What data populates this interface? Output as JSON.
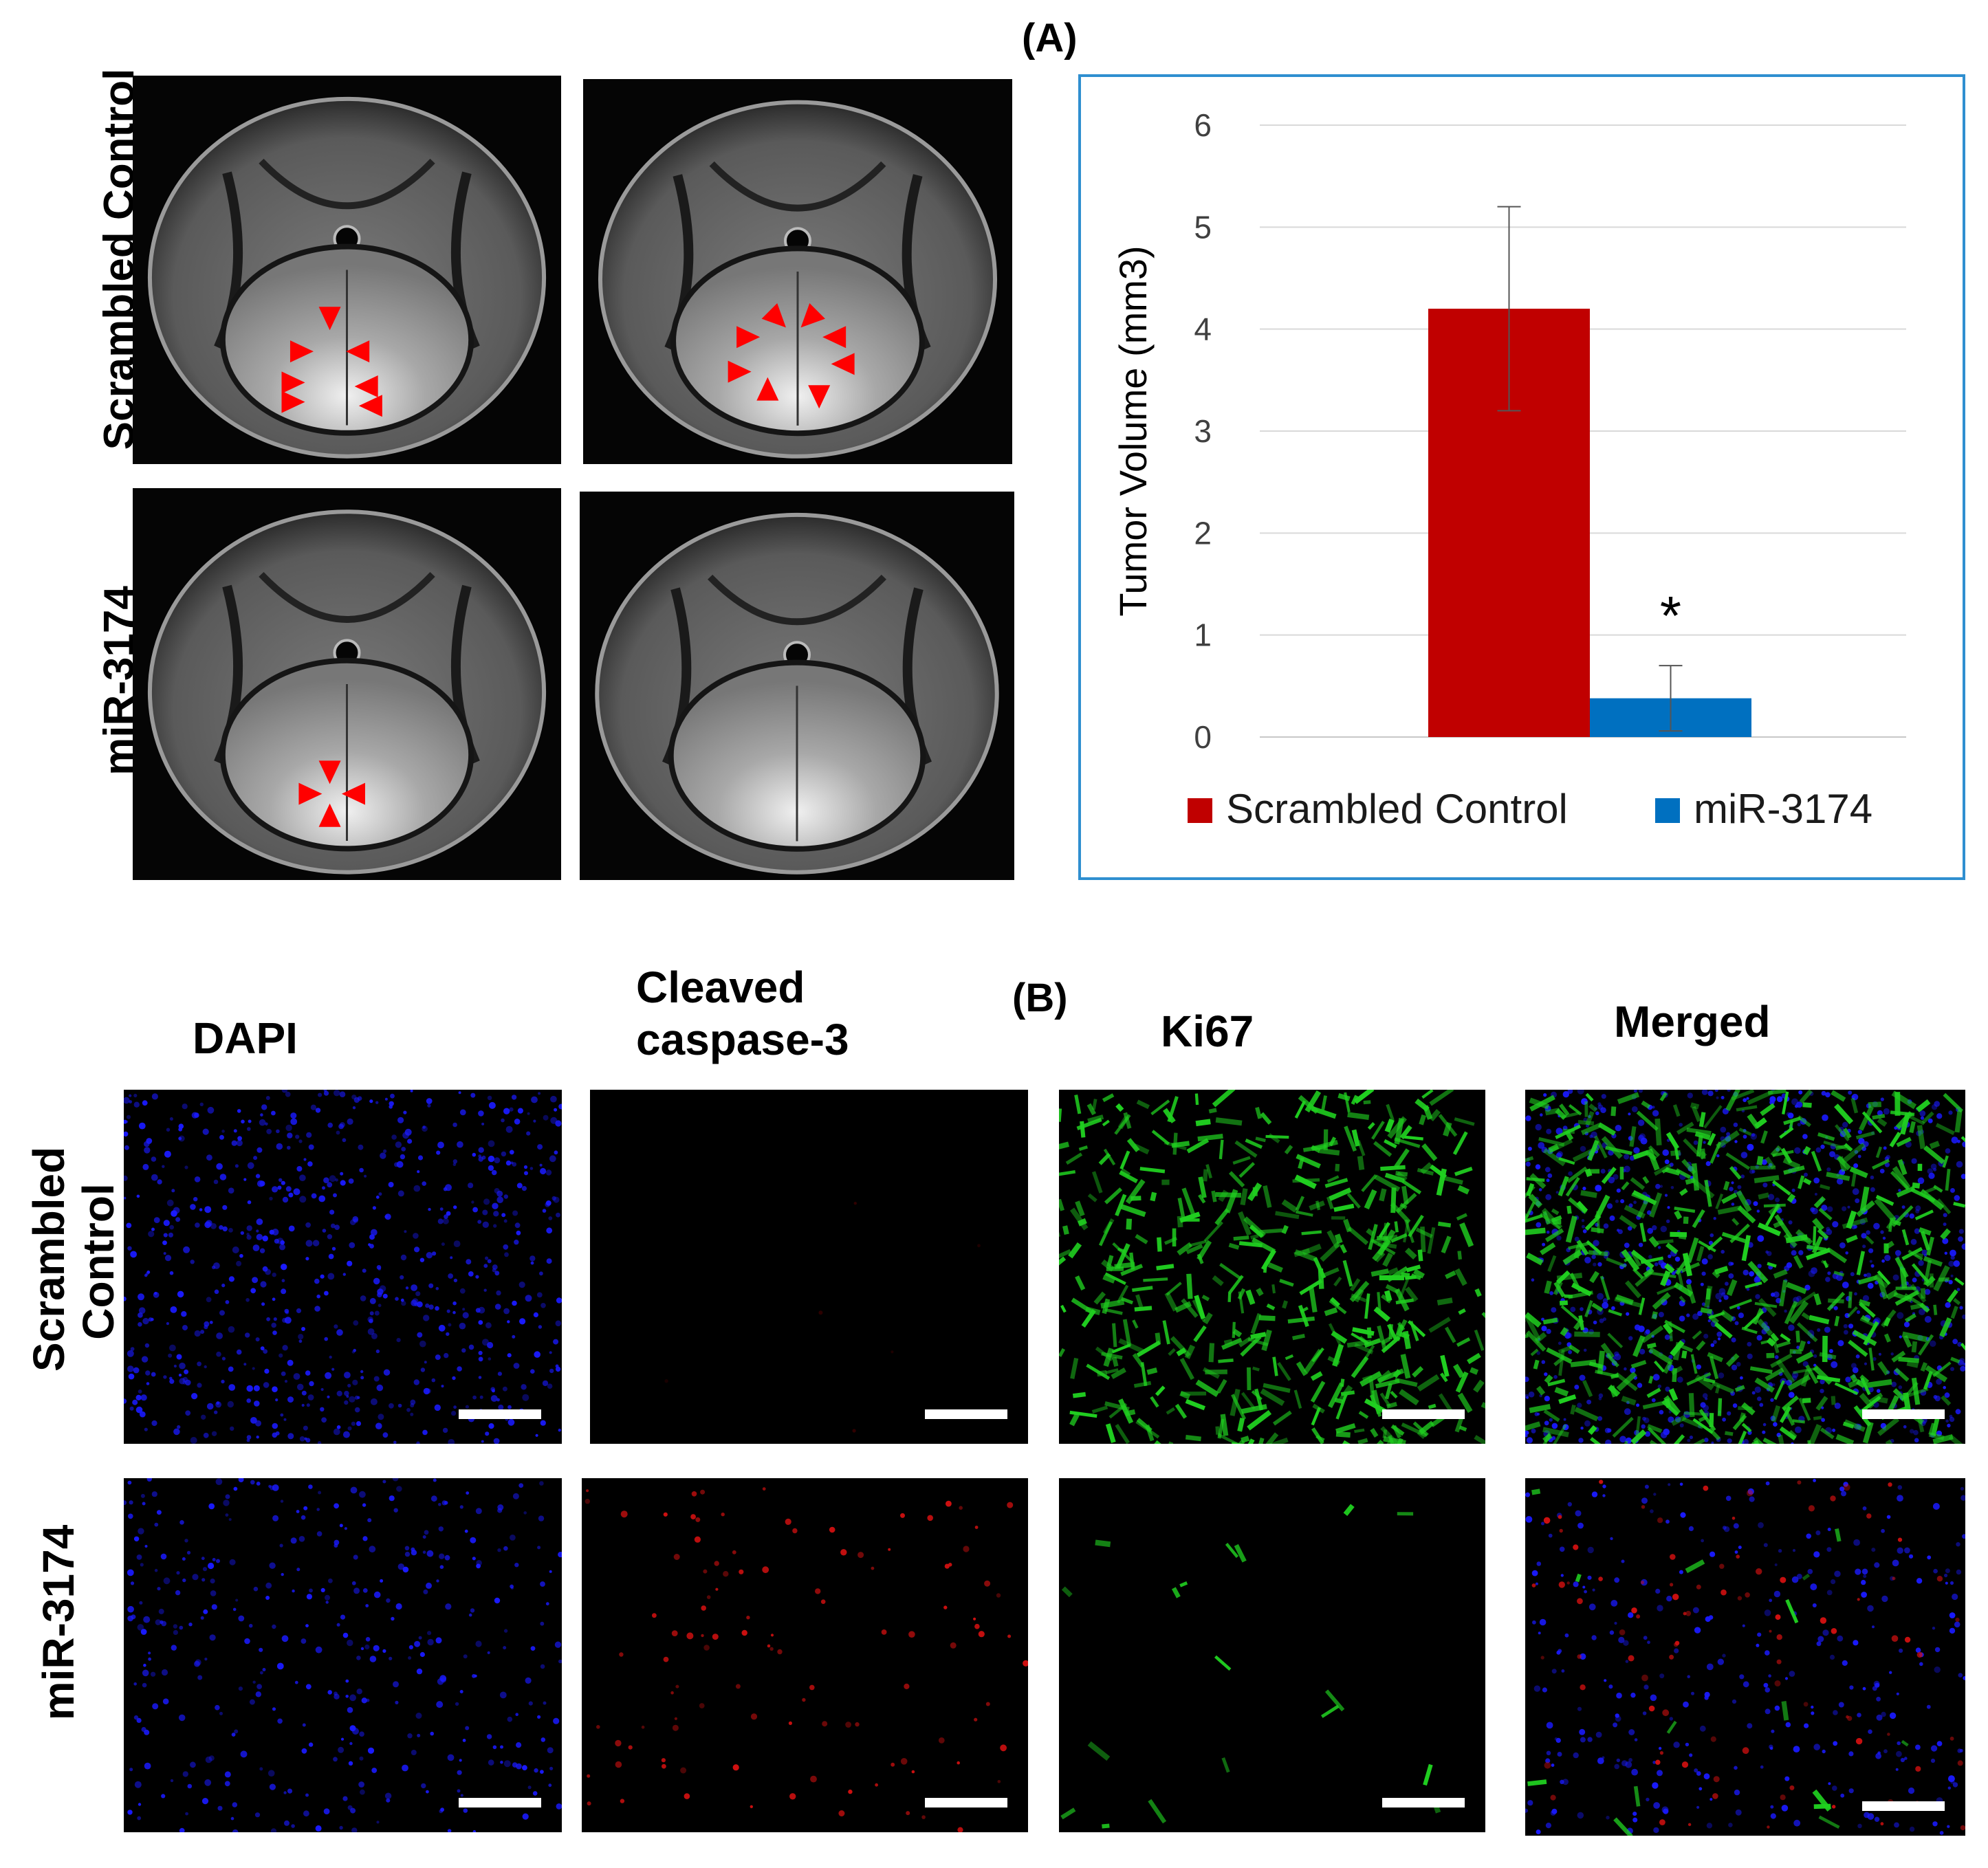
{
  "panel_a_label": "(A)",
  "panel_b_label": "(B)",
  "mri": {
    "row_labels": [
      "Scrambled Control",
      "miR-3174"
    ]
  },
  "micro": {
    "column_headers": [
      "DAPI",
      "Cleaved caspase-3",
      "Ki67",
      "Merged"
    ],
    "column_header_lines": [
      [
        "DAPI"
      ],
      [
        "Cleaved",
        "caspase-3"
      ],
      [
        "Ki67"
      ],
      [
        "Merged"
      ]
    ],
    "row_labels": [
      [
        "Scrambled",
        "Control"
      ],
      [
        "miR-3174"
      ]
    ]
  },
  "chart_data": {
    "type": "bar",
    "categories": [
      ""
    ],
    "series": [
      {
        "name": "Scrambled Control",
        "values": [
          4.2
        ],
        "error": [
          1.0
        ],
        "color": "#c00000"
      },
      {
        "name": "miR-3174",
        "values": [
          0.38
        ],
        "error": [
          0.32
        ],
        "color": "#0070c0"
      }
    ],
    "ylabel": "Tumor Volume (mm3)",
    "xlabel": "",
    "ylim": [
      0,
      6
    ],
    "yticks": [
      0,
      1,
      2,
      3,
      4,
      5,
      6
    ],
    "grid": true,
    "legend": "bottom",
    "annotations": [
      {
        "text": "*",
        "series": "miR-3174"
      }
    ]
  },
  "colors": {
    "arrow": "#ff0000",
    "dapi": "#1a1aff",
    "caspase": "#d01010",
    "ki67": "#20d020",
    "chart_border": "#2f8fd0"
  }
}
